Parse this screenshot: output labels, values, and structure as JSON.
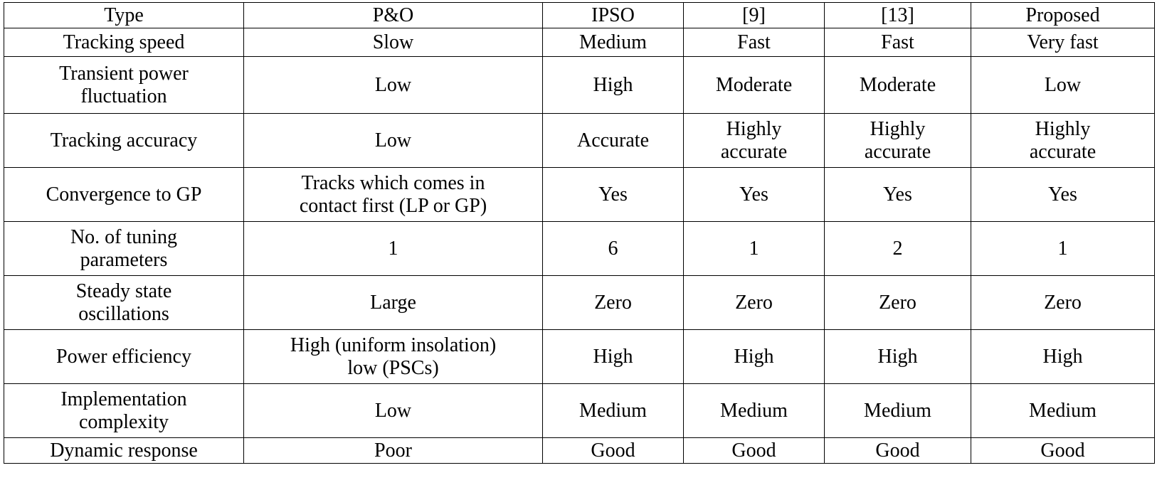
{
  "table": {
    "header": [
      "Type",
      "P&O",
      "IPSO",
      "[9]",
      "[13]",
      "Proposed"
    ],
    "rows": [
      {
        "label": [
          "Tracking speed"
        ],
        "cells": [
          [
            "Slow"
          ],
          [
            "Medium"
          ],
          [
            "Fast"
          ],
          [
            "Fast"
          ],
          [
            "Very fast"
          ]
        ]
      },
      {
        "label": [
          "Transient power",
          "fluctuation"
        ],
        "cells": [
          [
            "Low"
          ],
          [
            "High"
          ],
          [
            "Moderate"
          ],
          [
            "Moderate"
          ],
          [
            "Low"
          ]
        ]
      },
      {
        "label": [
          "Tracking accuracy"
        ],
        "cells": [
          [
            "Low"
          ],
          [
            "Accurate"
          ],
          [
            "Highly",
            "accurate"
          ],
          [
            "Highly",
            "accurate"
          ],
          [
            "Highly",
            "accurate"
          ]
        ]
      },
      {
        "label": [
          "Convergence to GP"
        ],
        "cells": [
          [
            "Tracks which comes in",
            "contact first (LP or GP)"
          ],
          [
            "Yes"
          ],
          [
            "Yes"
          ],
          [
            "Yes"
          ],
          [
            "Yes"
          ]
        ]
      },
      {
        "label": [
          "No. of tuning",
          "parameters"
        ],
        "cells": [
          [
            "1"
          ],
          [
            "6"
          ],
          [
            "1"
          ],
          [
            "2"
          ],
          [
            "1"
          ]
        ]
      },
      {
        "label": [
          "Steady state",
          "oscillations"
        ],
        "cells": [
          [
            "Large"
          ],
          [
            "Zero"
          ],
          [
            "Zero"
          ],
          [
            "Zero"
          ],
          [
            "Zero"
          ]
        ]
      },
      {
        "label": [
          "Power efficiency"
        ],
        "cells": [
          [
            "High (uniform insolation)",
            "low (PSCs)"
          ],
          [
            "High"
          ],
          [
            "High"
          ],
          [
            "High"
          ],
          [
            "High"
          ]
        ]
      },
      {
        "label": [
          "Implementation",
          "complexity"
        ],
        "cells": [
          [
            "Low"
          ],
          [
            "Medium"
          ],
          [
            "Medium"
          ],
          [
            "Medium"
          ],
          [
            "Medium"
          ]
        ]
      },
      {
        "label": [
          "Dynamic response"
        ],
        "cells": [
          [
            "Poor"
          ],
          [
            "Good"
          ],
          [
            "Good"
          ],
          [
            "Good"
          ],
          [
            "Good"
          ]
        ]
      }
    ]
  }
}
